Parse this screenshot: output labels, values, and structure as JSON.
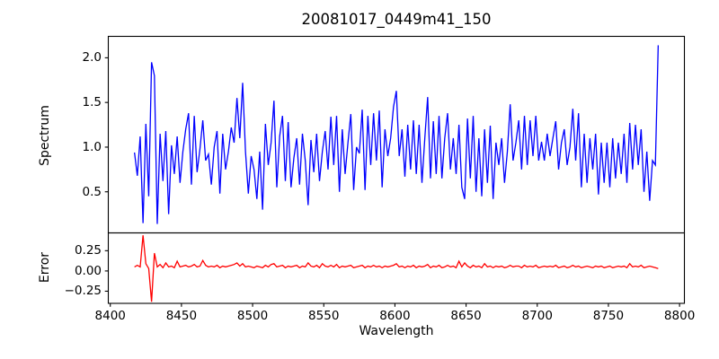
{
  "chart_data": {
    "type": "line",
    "title": "20081017_0449m41_150",
    "xlabel": "Wavelength",
    "xlim": [
      8398.6,
      8803.4
    ],
    "x_ticks": [
      8400,
      8450,
      8500,
      8550,
      8600,
      8650,
      8700,
      8750,
      8800
    ],
    "x_tick_labels": [
      "8400",
      "8450",
      "8500",
      "8550",
      "8600",
      "8650",
      "8700",
      "8750",
      "8800"
    ],
    "grid": false,
    "legend": "none",
    "background": "#ffffff",
    "axes_color": "#000000",
    "subplots": [
      {
        "name": "spectrum",
        "ylabel": "Spectrum",
        "line_color": "#0000ff",
        "ylim": [
          0.04,
          2.24
        ],
        "y_ticks": [
          0.5,
          1.0,
          1.5,
          2.0
        ],
        "y_tick_labels": [
          "0.5",
          "1.0",
          "1.5",
          "2.0"
        ],
        "x_start": 8417,
        "x_step": 2,
        "values": [
          0.94,
          0.68,
          1.12,
          0.15,
          1.26,
          0.45,
          1.95,
          1.8,
          0.14,
          1.15,
          0.62,
          1.18,
          0.25,
          1.02,
          0.7,
          1.12,
          0.6,
          0.95,
          1.2,
          1.38,
          0.58,
          1.35,
          0.72,
          0.98,
          1.3,
          0.85,
          0.92,
          0.58,
          1.0,
          1.18,
          0.48,
          1.15,
          0.75,
          0.95,
          1.22,
          1.05,
          1.55,
          1.1,
          1.72,
          0.95,
          0.48,
          0.9,
          0.75,
          0.42,
          0.95,
          0.3,
          1.26,
          0.8,
          1.05,
          1.52,
          0.55,
          1.12,
          1.35,
          0.62,
          1.28,
          0.55,
          0.88,
          1.1,
          0.58,
          1.15,
          0.85,
          0.35,
          1.08,
          0.72,
          1.15,
          0.62,
          0.95,
          1.18,
          0.75,
          1.34,
          0.8,
          1.35,
          0.5,
          1.2,
          0.7,
          1.05,
          1.37,
          0.52,
          1.0,
          0.93,
          1.42,
          0.52,
          1.35,
          0.8,
          1.38,
          0.85,
          1.41,
          0.55,
          1.2,
          0.9,
          1.1,
          1.45,
          1.63,
          0.9,
          1.2,
          0.67,
          1.25,
          0.75,
          1.3,
          0.7,
          1.25,
          0.6,
          1.1,
          1.56,
          0.65,
          1.29,
          0.7,
          1.35,
          0.65,
          1.1,
          1.38,
          0.75,
          1.1,
          0.7,
          1.25,
          0.55,
          0.42,
          1.32,
          0.65,
          1.35,
          0.5,
          1.1,
          0.45,
          1.2,
          0.6,
          1.24,
          0.42,
          1.05,
          0.8,
          1.1,
          0.6,
          0.95,
          1.48,
          0.85,
          1.05,
          1.3,
          0.75,
          1.35,
          0.8,
          1.3,
          0.9,
          1.35,
          0.85,
          1.06,
          0.85,
          1.15,
          0.9,
          1.1,
          1.29,
          0.75,
          1.05,
          1.2,
          0.8,
          1.0,
          1.43,
          0.85,
          1.38,
          0.55,
          1.15,
          0.6,
          1.1,
          0.75,
          1.15,
          0.47,
          1.05,
          0.6,
          1.05,
          0.55,
          1.1,
          0.65,
          1.05,
          0.7,
          1.15,
          0.6,
          1.27,
          0.75,
          1.25,
          0.8,
          1.2,
          0.5,
          0.95,
          0.4,
          0.85,
          0.8,
          2.14
        ]
      },
      {
        "name": "error",
        "ylabel": "Error",
        "line_color": "#ff0000",
        "ylim": [
          -0.4,
          0.47
        ],
        "y_ticks": [
          0.25,
          0.0,
          -0.25
        ],
        "y_tick_labels": [
          "0.25",
          "0.00",
          "−0.25"
        ],
        "x_start": 8417,
        "x_step": 2,
        "values": [
          0.05,
          0.07,
          0.05,
          0.44,
          0.09,
          0.03,
          -0.38,
          0.22,
          0.05,
          0.08,
          0.04,
          0.1,
          0.05,
          0.06,
          0.04,
          0.12,
          0.05,
          0.06,
          0.07,
          0.05,
          0.06,
          0.08,
          0.05,
          0.06,
          0.13,
          0.07,
          0.05,
          0.06,
          0.05,
          0.07,
          0.04,
          0.06,
          0.05,
          0.06,
          0.07,
          0.08,
          0.1,
          0.06,
          0.09,
          0.05,
          0.06,
          0.05,
          0.04,
          0.06,
          0.05,
          0.04,
          0.07,
          0.05,
          0.08,
          0.09,
          0.05,
          0.06,
          0.07,
          0.04,
          0.06,
          0.05,
          0.06,
          0.07,
          0.04,
          0.06,
          0.05,
          0.1,
          0.06,
          0.05,
          0.07,
          0.04,
          0.09,
          0.06,
          0.05,
          0.07,
          0.05,
          0.08,
          0.04,
          0.06,
          0.05,
          0.06,
          0.07,
          0.04,
          0.05,
          0.06,
          0.07,
          0.04,
          0.06,
          0.05,
          0.07,
          0.05,
          0.06,
          0.04,
          0.06,
          0.05,
          0.06,
          0.07,
          0.09,
          0.05,
          0.06,
          0.04,
          0.06,
          0.05,
          0.07,
          0.04,
          0.06,
          0.05,
          0.06,
          0.08,
          0.04,
          0.06,
          0.05,
          0.07,
          0.04,
          0.05,
          0.07,
          0.05,
          0.06,
          0.04,
          0.12,
          0.05,
          0.1,
          0.06,
          0.04,
          0.07,
          0.05,
          0.06,
          0.04,
          0.09,
          0.05,
          0.06,
          0.04,
          0.06,
          0.05,
          0.06,
          0.04,
          0.05,
          0.07,
          0.05,
          0.06,
          0.06,
          0.04,
          0.07,
          0.05,
          0.06,
          0.05,
          0.07,
          0.04,
          0.05,
          0.06,
          0.05,
          0.06,
          0.05,
          0.07,
          0.04,
          0.05,
          0.06,
          0.04,
          0.05,
          0.07,
          0.05,
          0.06,
          0.04,
          0.05,
          0.06,
          0.05,
          0.04,
          0.06,
          0.05,
          0.06,
          0.04,
          0.05,
          0.06,
          0.04,
          0.05,
          0.06,
          0.05,
          0.06,
          0.04,
          0.09,
          0.05,
          0.06,
          0.05,
          0.07,
          0.04,
          0.05,
          0.06,
          0.05,
          0.04,
          0.03
        ]
      }
    ]
  }
}
